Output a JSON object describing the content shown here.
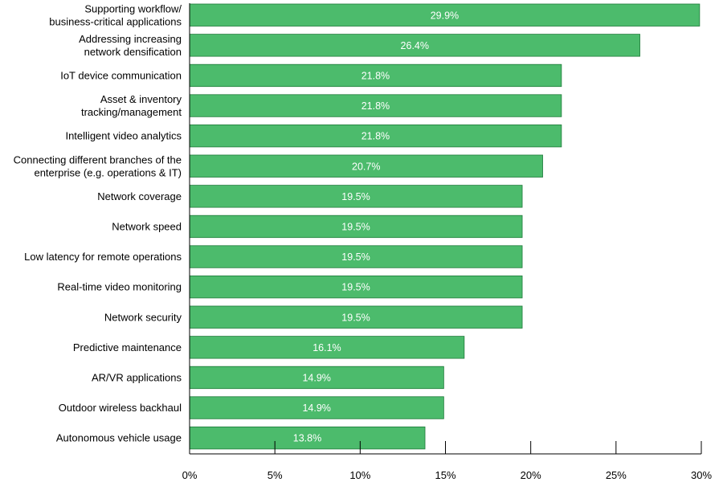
{
  "chart_data": {
    "type": "bar",
    "orientation": "horizontal",
    "categories": [
      [
        "Supporting workflow/",
        "business-critical applications"
      ],
      [
        "Addressing increasing",
        "network densification"
      ],
      [
        "IoT device communication"
      ],
      [
        "Asset & inventory",
        "tracking/management"
      ],
      [
        "Intelligent video analytics"
      ],
      [
        "Connecting different branches of the",
        "enterprise (e.g. operations & IT)"
      ],
      [
        "Network coverage"
      ],
      [
        "Network speed"
      ],
      [
        "Low latency for remote operations"
      ],
      [
        "Real-time video monitoring"
      ],
      [
        "Network security"
      ],
      [
        "Predictive maintenance"
      ],
      [
        "AR/VR applications"
      ],
      [
        "Outdoor wireless backhaul"
      ],
      [
        "Autonomous vehicle usage"
      ]
    ],
    "values": [
      29.9,
      26.4,
      21.8,
      21.8,
      21.8,
      20.7,
      19.5,
      19.5,
      19.5,
      19.5,
      19.5,
      16.1,
      14.9,
      14.9,
      13.8
    ],
    "value_labels": [
      "29.9%",
      "26.4%",
      "21.8%",
      "21.8%",
      "21.8%",
      "20.7%",
      "19.5%",
      "19.5%",
      "19.5%",
      "19.5%",
      "19.5%",
      "16.1%",
      "14.9%",
      "14.9%",
      "13.8%"
    ],
    "xlim": [
      0,
      30
    ],
    "xticks": [
      0,
      5,
      10,
      15,
      20,
      25,
      30
    ],
    "xtick_labels": [
      "0%",
      "5%",
      "10%",
      "15%",
      "20%",
      "25%",
      "30%"
    ],
    "title": "",
    "xlabel": "",
    "ylabel": "",
    "grid": false,
    "legend": "none",
    "bar_color": "#4cbb6c",
    "bar_edge_color": "#1f7a3a"
  }
}
